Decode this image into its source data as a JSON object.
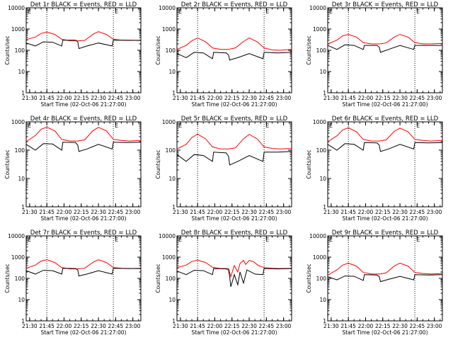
{
  "chart_data": [
    {
      "type": "line",
      "title": "Det 1r BLACK = Events, RED = LLD",
      "ylabel": "Counts/sec",
      "xlabel": "Start Time (02-Oct-06 21:27:00)",
      "yscale": "log",
      "ylim": [
        1,
        10000
      ],
      "xlim": [
        "21:27",
        "23:07"
      ],
      "x_ticks": [
        "21:30",
        "21:45",
        "22:00",
        "22:15",
        "22:30",
        "22:45",
        "23:00"
      ],
      "y_ticks": [
        "1",
        "10",
        "100",
        "1000",
        "10000"
      ],
      "vlines": [
        "21:45",
        "22:43"
      ],
      "corner_mark": "E",
      "series": [
        {
          "color": "#ff0000",
          "x": [
            "21:27",
            "21:35",
            "21:40",
            "21:45",
            "21:52",
            "21:58",
            "22:05",
            "22:12",
            "22:18",
            "22:25",
            "22:30",
            "22:37",
            "22:43",
            "22:50",
            "22:57",
            "23:07"
          ],
          "y": [
            320,
            420,
            620,
            720,
            560,
            330,
            280,
            280,
            290,
            560,
            750,
            560,
            330,
            300,
            290,
            300
          ]
        },
        {
          "color": "#000000",
          "x": [
            "21:27",
            "21:35",
            "21:42",
            "21:50",
            "21:58",
            "21:59",
            "22:10",
            "22:12",
            "22:13",
            "22:20",
            "22:30",
            "22:42",
            "22:43",
            "22:55",
            "23:07"
          ],
          "y": [
            220,
            160,
            250,
            240,
            160,
            300,
            300,
            250,
            120,
            160,
            220,
            160,
            300,
            300,
            290
          ]
        }
      ]
    },
    {
      "type": "line",
      "title": "Det 2r BLACK = Events, RED = LLD",
      "ylabel": "Counts/sec",
      "xlabel": "Start Time (02-Oct-06 21:27:00)",
      "yscale": "log",
      "ylim": [
        1,
        10000
      ],
      "xlim": [
        "21:27",
        "23:07"
      ],
      "x_ticks": [
        "21:30",
        "21:45",
        "22:00",
        "22:15",
        "22:30",
        "22:45",
        "23:00"
      ],
      "y_ticks": [
        "1",
        "10",
        "100",
        "1000",
        "10000"
      ],
      "vlines": [
        "21:45",
        "22:43"
      ],
      "corner_mark": "E",
      "series": [
        {
          "color": "#ff0000",
          "x": [
            "21:27",
            "21:35",
            "21:40",
            "21:45",
            "21:52",
            "21:58",
            "22:05",
            "22:12",
            "22:18",
            "22:25",
            "22:30",
            "22:37",
            "22:43",
            "22:50",
            "22:57",
            "23:07"
          ],
          "y": [
            110,
            170,
            280,
            380,
            250,
            130,
            110,
            110,
            130,
            260,
            380,
            250,
            130,
            105,
            100,
            110
          ]
        },
        {
          "color": "#000000",
          "x": [
            "21:27",
            "21:35",
            "21:42",
            "21:50",
            "21:58",
            "21:59",
            "22:10",
            "22:12",
            "22:13",
            "22:20",
            "22:30",
            "22:42",
            "22:43",
            "22:55",
            "23:07"
          ],
          "y": [
            70,
            45,
            80,
            75,
            40,
            80,
            75,
            60,
            35,
            45,
            70,
            40,
            80,
            75,
            80
          ]
        }
      ]
    },
    {
      "type": "line",
      "title": "Det 3r BLACK = Events, RED = LLD",
      "ylabel": "Counts/sec",
      "xlabel": "Start Time (02-Oct-06 21:27:00)",
      "yscale": "log",
      "ylim": [
        1,
        10000
      ],
      "xlim": [
        "21:27",
        "23:07"
      ],
      "x_ticks": [
        "21:30",
        "21:45",
        "22:00",
        "22:15",
        "22:30",
        "22:45",
        "23:00"
      ],
      "y_ticks": [
        "1",
        "10",
        "100",
        "1000",
        "10000"
      ],
      "vlines": [
        "21:45",
        "22:43"
      ],
      "corner_mark": "E",
      "series": [
        {
          "color": "#ff0000",
          "x": [
            "21:27",
            "21:35",
            "21:40",
            "21:45",
            "21:52",
            "21:58",
            "22:05",
            "22:12",
            "22:18",
            "22:25",
            "22:30",
            "22:37",
            "22:43",
            "22:50",
            "22:57",
            "23:07"
          ],
          "y": [
            200,
            300,
            480,
            560,
            420,
            230,
            200,
            200,
            220,
            420,
            560,
            420,
            230,
            200,
            200,
            210
          ]
        },
        {
          "color": "#000000",
          "x": [
            "21:27",
            "21:35",
            "21:42",
            "21:50",
            "21:58",
            "21:59",
            "22:10",
            "22:12",
            "22:13",
            "22:20",
            "22:30",
            "22:42",
            "22:43",
            "22:55",
            "23:07"
          ],
          "y": [
            170,
            110,
            180,
            170,
            110,
            170,
            170,
            140,
            80,
            110,
            170,
            110,
            170,
            170,
            170
          ]
        }
      ]
    },
    {
      "type": "line",
      "title": "Det 4r BLACK = Events, RED = LLD",
      "ylabel": "Counts/sec",
      "xlabel": "Start Time (02-Oct-06 21:27:00)",
      "yscale": "log",
      "ylim": [
        1,
        1000
      ],
      "xlim": [
        "21:27",
        "23:07"
      ],
      "x_ticks": [
        "21:30",
        "21:45",
        "22:00",
        "22:15",
        "22:30",
        "22:45",
        "23:00"
      ],
      "y_ticks": [
        "1",
        "10",
        "100",
        "1000"
      ],
      "vlines": [
        "21:45",
        "22:43"
      ],
      "corner_mark": "E",
      "series": [
        {
          "color": "#ff0000",
          "x": [
            "21:27",
            "21:35",
            "21:40",
            "21:45",
            "21:52",
            "21:58",
            "22:05",
            "22:12",
            "22:18",
            "22:25",
            "22:30",
            "22:37",
            "22:43",
            "22:50",
            "22:57",
            "23:07"
          ],
          "y": [
            200,
            330,
            550,
            650,
            480,
            240,
            210,
            210,
            230,
            480,
            640,
            480,
            240,
            220,
            210,
            220
          ]
        },
        {
          "color": "#000000",
          "x": [
            "21:27",
            "21:35",
            "21:42",
            "21:50",
            "21:58",
            "21:59",
            "22:10",
            "22:12",
            "22:13",
            "22:20",
            "22:30",
            "22:42",
            "22:43",
            "22:55",
            "23:07"
          ],
          "y": [
            160,
            100,
            170,
            165,
            100,
            190,
            185,
            150,
            90,
            110,
            160,
            110,
            190,
            185,
            190
          ]
        }
      ]
    },
    {
      "type": "line",
      "title": "Det 5r BLACK = Events, RED = LLD",
      "ylabel": "Counts/sec",
      "xlabel": "Start Time (02-Oct-06 21:27:00)",
      "yscale": "log",
      "ylim": [
        1,
        1000
      ],
      "xlim": [
        "21:27",
        "23:07"
      ],
      "x_ticks": [
        "21:30",
        "21:45",
        "22:00",
        "22:15",
        "22:30",
        "22:45",
        "23:00"
      ],
      "y_ticks": [
        "1",
        "10",
        "100",
        "1000"
      ],
      "vlines": [
        "21:45",
        "22:43"
      ],
      "corner_mark": "E",
      "series": [
        {
          "color": "#ff0000",
          "x": [
            "21:27",
            "21:35",
            "21:40",
            "21:45",
            "21:52",
            "21:58",
            "22:05",
            "22:12",
            "22:18",
            "22:25",
            "22:30",
            "22:37",
            "22:43",
            "22:50",
            "22:57",
            "23:07"
          ],
          "y": [
            110,
            160,
            280,
            370,
            250,
            130,
            110,
            110,
            120,
            250,
            360,
            250,
            130,
            115,
            110,
            115
          ]
        },
        {
          "color": "#000000",
          "x": [
            "21:27",
            "21:35",
            "21:42",
            "21:50",
            "21:58",
            "21:59",
            "22:10",
            "22:12",
            "22:13",
            "22:20",
            "22:30",
            "22:42",
            "22:43",
            "22:55",
            "23:07"
          ],
          "y": [
            70,
            40,
            70,
            65,
            40,
            85,
            80,
            60,
            30,
            40,
            65,
            40,
            85,
            85,
            90
          ]
        }
      ]
    },
    {
      "type": "line",
      "title": "Det 6r BLACK = Events, RED = LLD",
      "ylabel": "Counts/sec",
      "xlabel": "Start Time (02-Oct-06 21:27:00)",
      "yscale": "log",
      "ylim": [
        1,
        1000
      ],
      "xlim": [
        "21:27",
        "23:07"
      ],
      "x_ticks": [
        "21:30",
        "21:45",
        "22:00",
        "22:15",
        "22:30",
        "22:45",
        "23:00"
      ],
      "y_ticks": [
        "1",
        "10",
        "100",
        "1000"
      ],
      "vlines": [
        "21:45",
        "22:43"
      ],
      "corner_mark": "E",
      "series": [
        {
          "color": "#ff0000",
          "x": [
            "21:27",
            "21:35",
            "21:40",
            "21:45",
            "21:52",
            "21:58",
            "22:05",
            "22:12",
            "22:18",
            "22:25",
            "22:30",
            "22:37",
            "22:43",
            "22:50",
            "22:57",
            "23:07"
          ],
          "y": [
            200,
            320,
            520,
            620,
            450,
            240,
            210,
            210,
            230,
            460,
            600,
            450,
            240,
            220,
            210,
            220
          ]
        },
        {
          "color": "#000000",
          "x": [
            "21:27",
            "21:35",
            "21:42",
            "21:50",
            "21:58",
            "21:59",
            "22:10",
            "22:12",
            "22:13",
            "22:20",
            "22:30",
            "22:42",
            "22:43",
            "22:55",
            "23:07"
          ],
          "y": [
            160,
            100,
            170,
            160,
            100,
            185,
            180,
            150,
            90,
            110,
            160,
            110,
            185,
            180,
            185
          ]
        }
      ]
    },
    {
      "type": "line",
      "title": "Det 7r BLACK = Events, RED = LLD",
      "ylabel": "Counts/sec",
      "xlabel": "Start Time (02-Oct-06 21:27:00)",
      "yscale": "log",
      "ylim": [
        1,
        10000
      ],
      "xlim": [
        "21:27",
        "23:07"
      ],
      "x_ticks": [
        "21:30",
        "21:45",
        "22:00",
        "22:15",
        "22:30",
        "22:45",
        "23:00"
      ],
      "y_ticks": [
        "1",
        "10",
        "100",
        "1000",
        "10000"
      ],
      "vlines": [
        "21:45",
        "22:43"
      ],
      "corner_mark": "E",
      "series": [
        {
          "color": "#ff0000",
          "x": [
            "21:27",
            "21:35",
            "21:40",
            "21:45",
            "21:52",
            "21:58",
            "22:05",
            "22:12",
            "22:18",
            "22:25",
            "22:30",
            "22:37",
            "22:43",
            "22:50",
            "22:57",
            "23:07"
          ],
          "y": [
            300,
            420,
            650,
            750,
            560,
            320,
            280,
            280,
            300,
            560,
            750,
            560,
            320,
            300,
            290,
            300
          ]
        },
        {
          "color": "#000000",
          "x": [
            "21:27",
            "21:35",
            "21:42",
            "21:50",
            "21:58",
            "21:59",
            "22:10",
            "22:12",
            "22:13",
            "22:20",
            "22:30",
            "22:42",
            "22:43",
            "22:55",
            "23:07"
          ],
          "y": [
            230,
            160,
            240,
            230,
            160,
            300,
            290,
            250,
            130,
            160,
            230,
            160,
            300,
            290,
            290
          ]
        }
      ]
    },
    {
      "type": "line",
      "title": "Det 8r BLACK = Events, RED = LLD",
      "ylabel": "Counts/sec",
      "xlabel": "Start Time (02-Oct-06 21:27:00)",
      "yscale": "log",
      "ylim": [
        1,
        10000
      ],
      "xlim": [
        "21:27",
        "23:07"
      ],
      "x_ticks": [
        "21:30",
        "21:45",
        "22:00",
        "22:15",
        "22:30",
        "22:45",
        "23:00"
      ],
      "y_ticks": [
        "1",
        "10",
        "100",
        "1000",
        "10000"
      ],
      "vlines": [
        "21:45",
        "22:43"
      ],
      "corner_mark": "E",
      "series": [
        {
          "color": "#ff0000",
          "x": [
            "21:27",
            "21:35",
            "21:40",
            "21:45",
            "21:52",
            "21:58",
            "22:05",
            "22:12",
            "22:14",
            "22:17",
            "22:20",
            "22:22",
            "22:25",
            "22:27",
            "22:30",
            "22:34",
            "22:38",
            "22:43",
            "22:50",
            "22:57",
            "23:07"
          ],
          "y": [
            320,
            420,
            620,
            720,
            560,
            330,
            290,
            290,
            120,
            400,
            200,
            500,
            700,
            450,
            700,
            600,
            400,
            320,
            300,
            290,
            300
          ]
        },
        {
          "color": "#000000",
          "x": [
            "21:27",
            "21:35",
            "21:42",
            "21:50",
            "21:58",
            "21:59",
            "22:10",
            "22:12",
            "22:13",
            "22:14",
            "22:17",
            "22:20",
            "22:22",
            "22:25",
            "22:28",
            "22:30",
            "22:35",
            "22:42",
            "22:43",
            "22:55",
            "23:07"
          ],
          "y": [
            220,
            150,
            240,
            230,
            150,
            290,
            280,
            250,
            120,
            40,
            150,
            50,
            200,
            60,
            250,
            220,
            160,
            150,
            290,
            280,
            290
          ]
        }
      ]
    },
    {
      "type": "line",
      "title": "Det 9r BLACK = Events, RED = LLD",
      "ylabel": "Counts/sec",
      "xlabel": "Start Time (02-Oct-06 21:27:00)",
      "yscale": "log",
      "ylim": [
        1,
        10000
      ],
      "xlim": [
        "21:27",
        "23:07"
      ],
      "x_ticks": [
        "21:30",
        "21:45",
        "22:00",
        "22:15",
        "22:30",
        "22:45",
        "23:00"
      ],
      "y_ticks": [
        "1",
        "10",
        "100",
        "1000",
        "10000"
      ],
      "vlines": [
        "21:45",
        "22:43"
      ],
      "corner_mark": "E",
      "series": [
        {
          "color": "#ff0000",
          "x": [
            "21:27",
            "21:35",
            "21:40",
            "21:45",
            "21:52",
            "21:58",
            "22:05",
            "22:12",
            "22:18",
            "22:25",
            "22:30",
            "22:37",
            "22:43",
            "22:50",
            "22:57",
            "23:07"
          ],
          "y": [
            140,
            250,
            420,
            520,
            380,
            190,
            160,
            160,
            180,
            380,
            520,
            380,
            190,
            170,
            160,
            170
          ]
        },
        {
          "color": "#000000",
          "x": [
            "21:27",
            "21:35",
            "21:42",
            "21:50",
            "21:58",
            "21:59",
            "22:10",
            "22:12",
            "22:13",
            "22:20",
            "22:30",
            "22:42",
            "22:43",
            "22:55",
            "23:07"
          ],
          "y": [
            120,
            85,
            130,
            125,
            80,
            150,
            145,
            120,
            70,
            90,
            125,
            85,
            150,
            145,
            150
          ]
        }
      ]
    }
  ]
}
